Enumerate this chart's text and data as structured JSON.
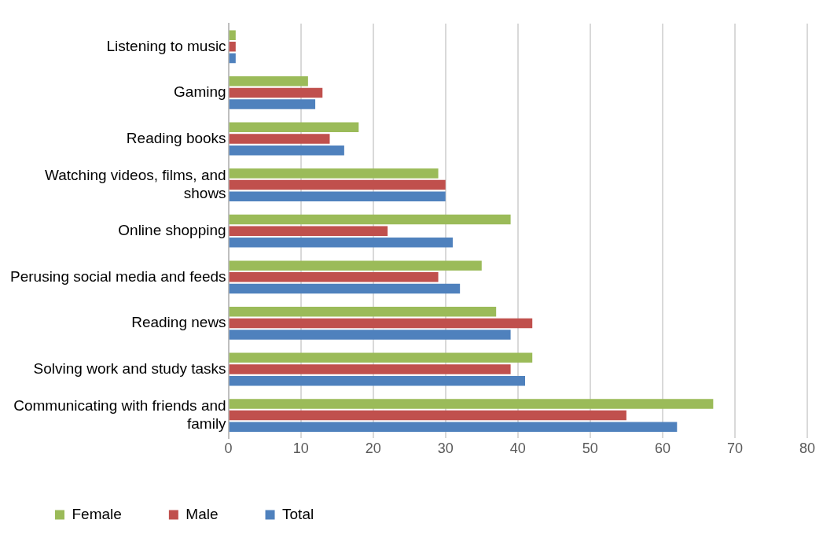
{
  "chart_data": {
    "type": "bar",
    "orientation": "horizontal",
    "categories": [
      "Listening to music",
      "Gaming",
      "Reading books",
      "Watching videos, films, and shows",
      "Online shopping",
      "Perusing social media and feeds",
      "Reading news",
      "Solving work and study tasks",
      "Communicating with friends and family"
    ],
    "series": [
      {
        "name": "Female",
        "color": "#9bbb59",
        "values": [
          1,
          11,
          18,
          29,
          39,
          35,
          37,
          42,
          67
        ]
      },
      {
        "name": "Male",
        "color": "#c0504d",
        "values": [
          1,
          13,
          14,
          30,
          22,
          29,
          42,
          39,
          55
        ]
      },
      {
        "name": "Total",
        "color": "#4f81bd",
        "values": [
          1,
          12,
          16,
          30,
          31,
          32,
          39,
          41,
          62
        ]
      }
    ],
    "xlim": [
      0,
      80
    ],
    "xticks": [
      0,
      10,
      20,
      30,
      40,
      50,
      60,
      70,
      80
    ],
    "grid": "x",
    "legend": "bottom"
  }
}
